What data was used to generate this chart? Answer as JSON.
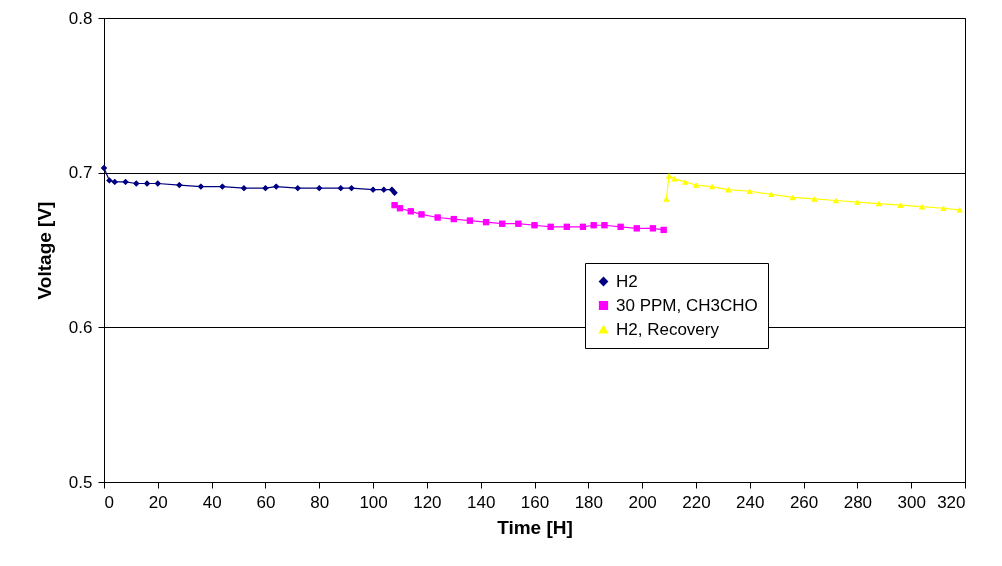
{
  "chart_data": {
    "type": "line",
    "xlabel": "Time [H]",
    "ylabel": "Voltage  [V]",
    "xlim": [
      0,
      320
    ],
    "xticks": [
      0,
      20,
      40,
      60,
      80,
      100,
      120,
      140,
      160,
      180,
      200,
      220,
      240,
      260,
      280,
      300,
      320
    ],
    "ylim": [
      0.5,
      0.8
    ],
    "yticks": [
      0.5,
      0.6,
      0.7,
      0.8
    ],
    "grid": "y",
    "legend": "right",
    "line_style": "solid",
    "series": [
      {
        "name": "H2",
        "color": "#000080",
        "marker": "diamond",
        "x": [
          0,
          2,
          4,
          8,
          12,
          16,
          20,
          28,
          36,
          44,
          52,
          60,
          64,
          72,
          80,
          88,
          92,
          100,
          104,
          107,
          108
        ],
        "values": [
          0.703,
          0.695,
          0.694,
          0.694,
          0.693,
          0.693,
          0.693,
          0.692,
          0.691,
          0.691,
          0.69,
          0.69,
          0.691,
          0.69,
          0.69,
          0.69,
          0.69,
          0.689,
          0.689,
          0.689,
          0.687
        ]
      },
      {
        "name": "30 PPM, CH3CHO",
        "color": "#ff00ff",
        "marker": "square",
        "x": [
          108,
          110,
          114,
          118,
          124,
          130,
          136,
          142,
          148,
          154,
          160,
          166,
          172,
          178,
          182,
          186,
          192,
          198,
          204,
          208
        ],
        "values": [
          0.679,
          0.677,
          0.675,
          0.673,
          0.671,
          0.67,
          0.669,
          0.668,
          0.667,
          0.667,
          0.666,
          0.665,
          0.665,
          0.665,
          0.666,
          0.666,
          0.665,
          0.664,
          0.664,
          0.663
        ]
      },
      {
        "name": "H2, Recovery",
        "color": "#ffff00",
        "marker": "triangle",
        "x": [
          209,
          210,
          212,
          216,
          220,
          226,
          232,
          240,
          248,
          256,
          264,
          272,
          280,
          288,
          296,
          304,
          312,
          318
        ],
        "values": [
          0.683,
          0.698,
          0.696,
          0.694,
          0.692,
          0.691,
          0.689,
          0.688,
          0.686,
          0.684,
          0.683,
          0.682,
          0.681,
          0.68,
          0.679,
          0.678,
          0.677,
          0.676
        ]
      }
    ]
  }
}
